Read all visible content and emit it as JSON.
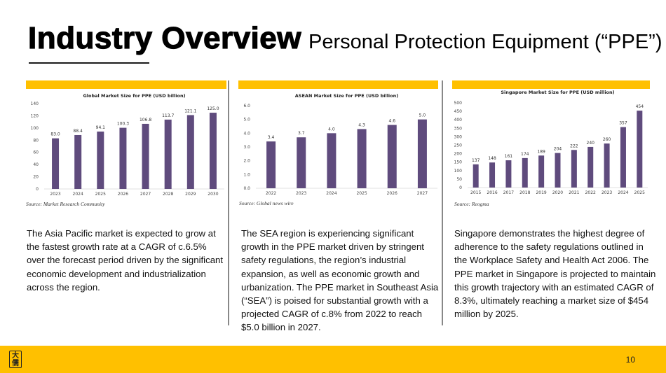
{
  "header": {
    "title": "Industry Overview",
    "subtitle": "Personal Protection Equipment (“PPE”)"
  },
  "colors": {
    "accent": "#ffc000",
    "bar": "#5f4b7d",
    "divider": "#888888"
  },
  "chart_data": [
    {
      "type": "bar",
      "title": "Global Market Size for PPE (USD billion)",
      "categories": [
        "2023",
        "2024",
        "2025",
        "2026",
        "2027",
        "2028",
        "2029",
        "2030"
      ],
      "values": [
        83.0,
        88.4,
        94.1,
        100.3,
        106.8,
        113.7,
        121.1,
        125.0
      ],
      "value_labels": [
        "83.0",
        "88.4",
        "94.1",
        "100.3",
        "106.8",
        "113.7",
        "121.1",
        "125.0"
      ],
      "yticks": [
        "0",
        "20",
        "40",
        "60",
        "80",
        "100",
        "120",
        "140"
      ],
      "ylim": [
        0,
        140
      ],
      "xlabel": "",
      "ylabel": "",
      "grid": false,
      "source": "Source: Market Research Community"
    },
    {
      "type": "bar",
      "title": "ASEAN Market Size for PPE (USD billion)",
      "categories": [
        "2022",
        "2023",
        "2024",
        "2025",
        "2026",
        "2027"
      ],
      "values": [
        3.4,
        3.7,
        4.0,
        4.3,
        4.6,
        5.0
      ],
      "value_labels": [
        "3.4",
        "3.7",
        "4.0",
        "4.3",
        "4.6",
        "5.0"
      ],
      "yticks": [
        "0.0",
        "1.0",
        "2.0",
        "3.0",
        "4.0",
        "5.0",
        "6.0"
      ],
      "ylim": [
        0,
        6
      ],
      "xlabel": "",
      "ylabel": "",
      "grid": false,
      "source": "Source: Global news wire"
    },
    {
      "type": "bar",
      "title": "Singapore Market Size for PPE (USD million)",
      "categories": [
        "2015",
        "2016",
        "2017",
        "2018",
        "2019",
        "2020",
        "2021",
        "2022",
        "2023",
        "2024",
        "2025"
      ],
      "values": [
        137,
        148,
        161,
        174,
        189,
        204,
        222,
        240,
        260,
        357,
        454
      ],
      "value_labels": [
        "137",
        "148",
        "161",
        "174",
        "189",
        "204",
        "222",
        "240",
        "260",
        "357",
        "454"
      ],
      "yticks": [
        "0",
        "50",
        "100",
        "150",
        "200",
        "250",
        "300",
        "350",
        "400",
        "450",
        "500"
      ],
      "ylim": [
        0,
        500
      ],
      "xlabel": "",
      "ylabel": "",
      "grid": false,
      "source": "Source: Reogma"
    }
  ],
  "descriptions": [
    "The Asia Pacific market is expected to grow at the fastest growth rate at a CAGR of c.6.5% over the forecast period driven by the significant economic development and industrialization across the region.",
    "The SEA region is experiencing significant growth in the PPE market driven by stringent safety regulations, the region’s industrial expansion, as well as economic growth and urbanization. The PPE market in Southeast Asia (“SEA”) is poised for substantial growth with a projected CAGR of c.8% from 2022 to reach $5.0 billion in 2027.",
    "Singapore demonstrates the highest degree of adherence to the safety regulations outlined in the Workplace Safety and Health Act 2006. The PPE market in Singapore is projected to maintain this growth trajectory with an estimated CAGR of 8.3%, ultimately reaching a market size of $454 million by 2025."
  ],
  "footer": {
    "logo_chars": [
      "大",
      "儒"
    ],
    "page_number": "10"
  }
}
